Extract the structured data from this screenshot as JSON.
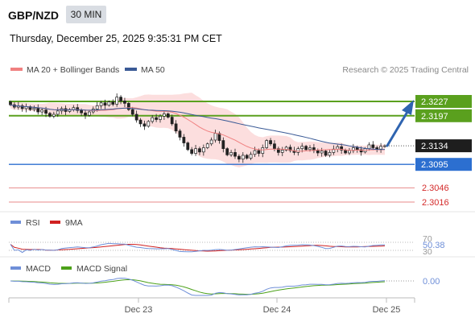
{
  "header": {
    "pair": "GBP/NZD",
    "timeframe": "30 MIN",
    "datetime": "Thursday, December 25, 2025 9:35:31 PM CET"
  },
  "colors": {
    "bollinger_line": "#f08080",
    "bollinger_band": "#fbd3d3",
    "ma50": "#3a5a96",
    "level_green": "#5aa01e",
    "level_blue": "#2c6fd0",
    "level_red": "#e06060",
    "last_price": "#1e1e1e",
    "arrow": "#2f64b0",
    "candle_up": "#ffffff",
    "candle_down": "#222222",
    "rsi": "#6f8fd8",
    "rsi_ma": "#d02020",
    "macd": "#6f8fd8",
    "macd_signal": "#4ca11a"
  },
  "chart_data": [
    {
      "type": "candlestick",
      "title": "",
      "legend": [
        {
          "name": "MA 20 + Bollinger Bands",
          "color": "#f08080"
        },
        {
          "name": "MA 50",
          "color": "#3a5a96"
        }
      ],
      "credit": "Research © 2025 Trading Central",
      "ylim": [
        2.3,
        2.328
      ],
      "x_ticks": [
        "Dec 23",
        "Dec 24",
        "Dec 25"
      ],
      "levels": [
        {
          "value": 2.3227,
          "label": "2.3227",
          "color": "#5aa01e",
          "kind": "resistance"
        },
        {
          "value": 2.3197,
          "label": "2.3197",
          "color": "#5aa01e",
          "kind": "resistance"
        },
        {
          "value": 2.3134,
          "label": "2.3134",
          "color": "#1e1e1e",
          "kind": "last"
        },
        {
          "value": 2.3095,
          "label": "2.3095",
          "color": "#2c6fd0",
          "kind": "support"
        },
        {
          "value": 2.3046,
          "label": "2.3046",
          "color": "#e06060",
          "kind": "support"
        },
        {
          "value": 2.3016,
          "label": "2.3016",
          "color": "#e06060",
          "kind": "support"
        }
      ],
      "close": [
        2.322,
        2.3215,
        2.3218,
        2.3212,
        2.3216,
        2.321,
        2.3213,
        2.3205,
        2.3209,
        2.3202,
        2.3196,
        2.32,
        2.3207,
        2.3212,
        2.3206,
        2.321,
        2.3214,
        2.3208,
        2.3203,
        2.3198,
        2.3205,
        2.3211,
        2.3218,
        2.3224,
        2.3219,
        2.3226,
        2.3221,
        2.3236,
        2.3228,
        2.3223,
        2.321,
        2.32,
        2.3188,
        2.318,
        2.3175,
        2.3185,
        2.3193,
        2.3189,
        2.3196,
        2.3201,
        2.3194,
        2.318,
        2.3165,
        2.3152,
        2.314,
        2.3126,
        2.3118,
        2.3128,
        2.3121,
        2.313,
        2.3138,
        2.3146,
        2.316,
        2.3145,
        2.3128,
        2.3115,
        2.312,
        2.3112,
        2.3106,
        2.3114,
        2.3108,
        2.3116,
        2.3124,
        2.3118,
        2.313,
        2.3145,
        2.3138,
        2.3128,
        2.312,
        2.3125,
        2.3131,
        2.3124,
        2.312,
        2.3128,
        2.3133,
        2.3126,
        2.313,
        2.3124,
        2.3119,
        2.3123,
        2.3114,
        2.312,
        2.3127,
        2.3132,
        2.3125,
        2.3119,
        2.3124,
        2.313,
        2.3126,
        2.3121,
        2.3128,
        2.3136,
        2.313,
        2.3127,
        2.3133,
        2.3134
      ]
    },
    {
      "type": "line",
      "title": "",
      "series": [
        {
          "name": "RSI",
          "color": "#6f8fd8"
        },
        {
          "name": "9MA",
          "color": "#d02020"
        }
      ],
      "ylim": [
        30,
        70
      ],
      "y_ticks": [
        70,
        30
      ],
      "current_value": 50.38
    },
    {
      "type": "line",
      "title": "",
      "series": [
        {
          "name": "MACD",
          "color": "#6f8fd8"
        },
        {
          "name": "MACD Signal",
          "color": "#4ca11a"
        }
      ],
      "y_ticks": [
        0.0
      ],
      "current_value": "0.00"
    }
  ]
}
